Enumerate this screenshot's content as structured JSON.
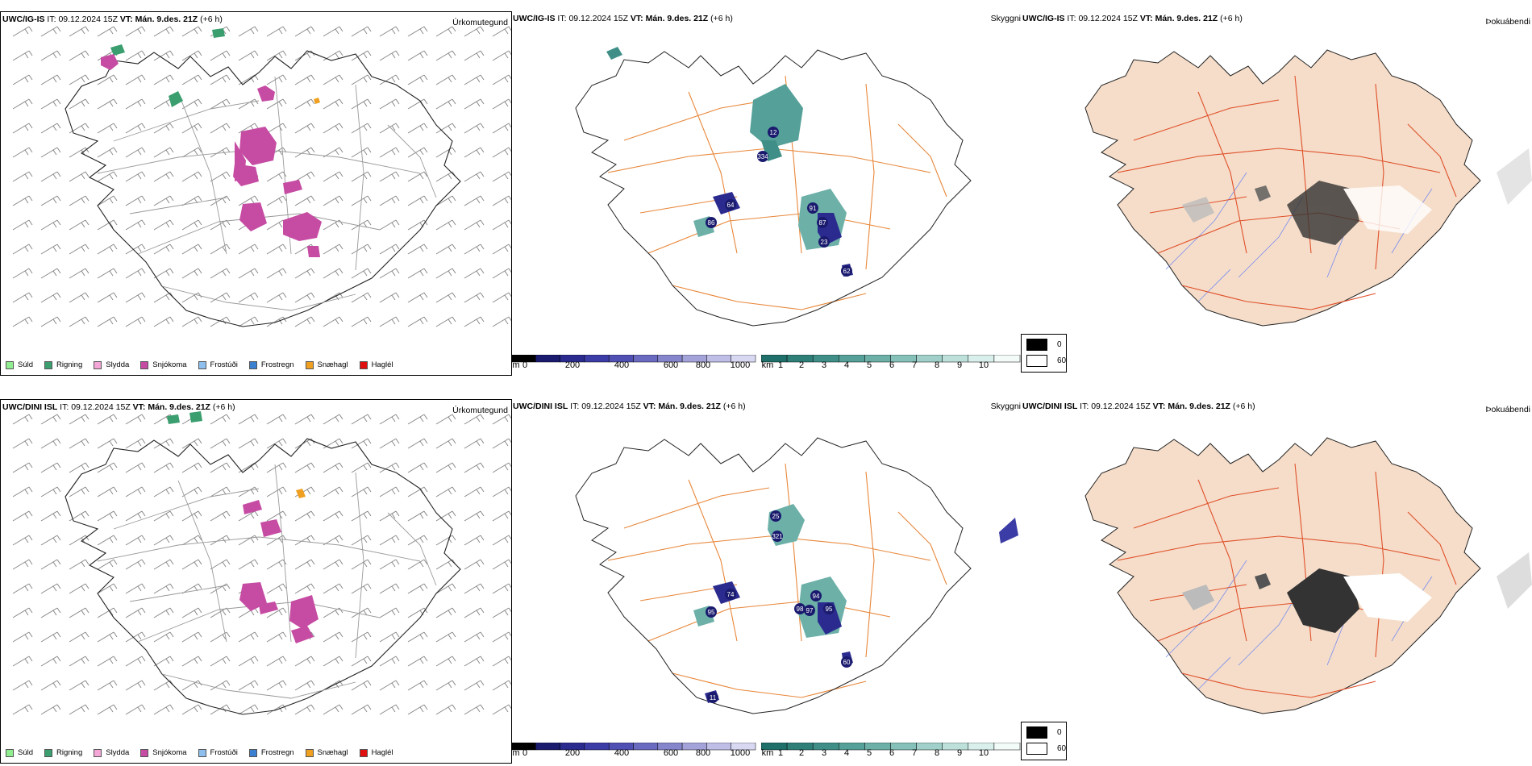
{
  "rows": [
    {
      "model": "UWC/IG-IS",
      "it_label": "IT:",
      "it_value": "09.12.2024 15Z",
      "vt_label": "VT:",
      "vt_value": "Mán. 9.des. 21Z",
      "lead": "(+6 h)"
    },
    {
      "model": "UWC/DINI ISL",
      "it_label": "IT:",
      "it_value": "09.12.2024 15Z",
      "vt_label": "VT:",
      "vt_value": "Mán. 9.des. 21Z",
      "lead": "(+6 h)"
    }
  ],
  "panel_types": {
    "precip": "Úrkomutegund",
    "visibility": "Skyggni",
    "fog": "Þokuábendi"
  },
  "precip_legend": [
    {
      "label": "Súld",
      "color": "#90ee90"
    },
    {
      "label": "Rigning",
      "color": "#3a9e6e"
    },
    {
      "label": "Slydda",
      "color": "#f4a6d7"
    },
    {
      "label": "Snjókoma",
      "color": "#c64ca3"
    },
    {
      "label": "Frostúði",
      "color": "#8fbfee"
    },
    {
      "label": "Frostregn",
      "color": "#3a7fd0"
    },
    {
      "label": "Snæhagl",
      "color": "#f0a020"
    },
    {
      "label": "Haglél",
      "color": "#e01010"
    }
  ],
  "visibility_scale": {
    "m_unit": "m",
    "m_ticks": [
      "0",
      "200",
      "400",
      "600",
      "800",
      "1000"
    ],
    "m_colors": [
      "#000000",
      "#1a1a6e",
      "#2b2b8f",
      "#3c3ca6",
      "#5050b4",
      "#6a6ac0",
      "#8585cc",
      "#a3a3d9",
      "#bebee6",
      "#d8d8f2"
    ],
    "km_unit": "km",
    "km_ticks": [
      "1",
      "2",
      "3",
      "4",
      "5",
      "6",
      "7",
      "8",
      "9",
      "10"
    ],
    "km_colors": [
      "#1f6f6a",
      "#2f7f79",
      "#3f8f88",
      "#55a098",
      "#6cb0a8",
      "#85c0b9",
      "#a0d0c9",
      "#bde0da",
      "#d9efeb",
      "#f3fbf9"
    ]
  },
  "fog_scale": {
    "high_label": "0",
    "low_label": "60",
    "high_color": "#000000",
    "low_color": "#ffffff"
  },
  "colors": {
    "land": "#f5ddc9",
    "roads_orange": "#e8873a",
    "roads_red": "#e0502a",
    "rivers": "#7a8ef0",
    "snow": "#c64ca3",
    "rain": "#3a9e6e"
  },
  "visibility_labels_row1": [
    "12",
    "334",
    "64",
    "91",
    "87",
    "86",
    "23",
    "62"
  ],
  "visibility_labels_row2": [
    "25",
    "321",
    "74",
    "94",
    "95",
    "97",
    "98",
    "95",
    "60",
    "11"
  ]
}
